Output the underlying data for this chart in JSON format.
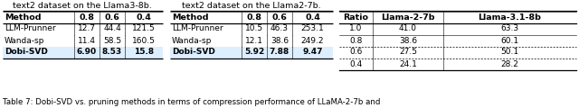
{
  "title_left": "text2 dataset on the Llama3-8b.",
  "title_right": "text2 dataset on the Llama2-7b.",
  "table1": {
    "headers": [
      "Method",
      "0.8",
      "0.6",
      "0.4"
    ],
    "rows": [
      [
        "LLM-Prunner",
        "12.7",
        "44.4",
        "121.5"
      ],
      [
        "Wanda-sp",
        "11.4",
        "58.5",
        "160.5"
      ],
      [
        "Dobi-SVD",
        "6.90",
        "8.53",
        "15.8"
      ]
    ]
  },
  "table2": {
    "headers": [
      "Method",
      "0.8",
      "0.6",
      "0.4"
    ],
    "rows": [
      [
        "LLM-Prunner",
        "10.5",
        "46.3",
        "253.1"
      ],
      [
        "Wanda-sp",
        "12.1",
        "38.6",
        "249.2"
      ],
      [
        "Dobi-SVD",
        "5.92",
        "7.88",
        "9.47"
      ]
    ]
  },
  "table3": {
    "headers": [
      "Ratio",
      "Llama-2-7b",
      "Llama-3.1-8b"
    ],
    "rows": [
      [
        "1.0",
        "41.0",
        "63.3"
      ],
      [
        "0.8",
        "38.6",
        "60.1"
      ],
      [
        "0.6",
        "27.5",
        "50.1"
      ],
      [
        "0.4",
        "24.1",
        "28.2"
      ]
    ]
  },
  "highlight_color": "#ddeeff",
  "caption": "Table 7: Dobi-SVD vs. pruning methods in terms of compression performance of LLaMA-2-7b and"
}
